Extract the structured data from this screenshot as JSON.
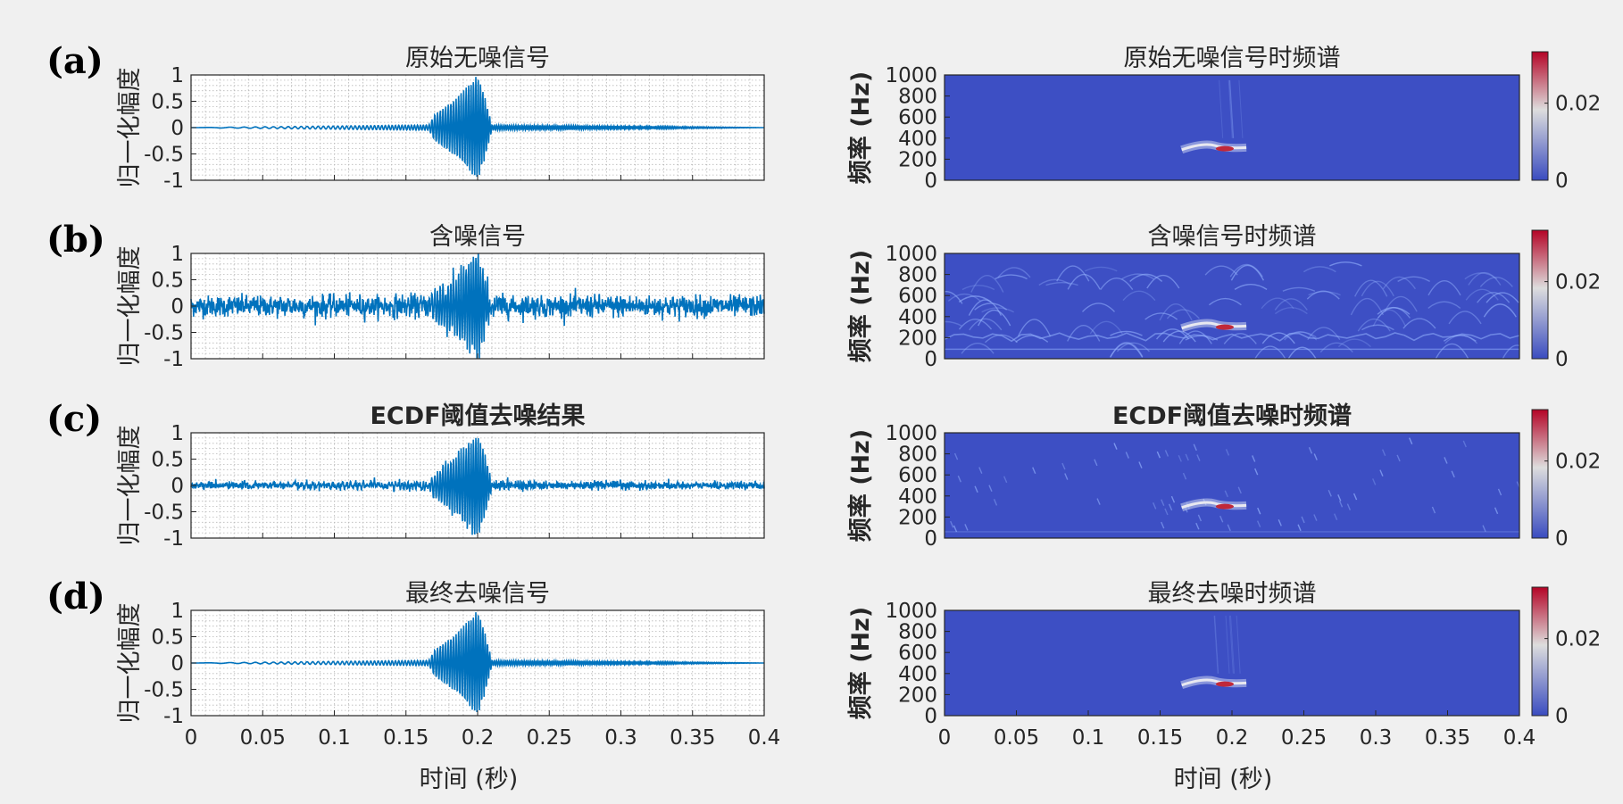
{
  "chart_data": [
    {
      "type": "line",
      "panel_label": "(a)",
      "title": "原始无噪信号",
      "ylabel": "归一化幅度",
      "xlabel": "",
      "xlim": [
        0,
        0.4
      ],
      "ylim": [
        -1,
        1
      ],
      "yticks": [
        "1",
        "0.5",
        "0",
        "-0.5",
        "-1"
      ],
      "xticks": [],
      "grid": "minor",
      "series": [
        {
          "color": "#0072bd",
          "x": [
            0,
            0.166,
            0.17,
            0.175,
            0.18,
            0.185,
            0.19,
            0.195,
            0.2,
            0.205,
            0.21,
            0.4
          ],
          "envelope": [
            0,
            0.05,
            0.25,
            0.35,
            0.45,
            0.55,
            0.7,
            0.85,
            1.0,
            0.6,
            0.05,
            0
          ],
          "noise": 0
        }
      ]
    },
    {
      "type": "heatmap",
      "title": "原始无噪信号时频谱",
      "ylabel": "频率 (Hz)",
      "xlabel": "",
      "xlim": [
        0,
        0.4
      ],
      "ylim": [
        0,
        1000
      ],
      "yticks": [
        "1000",
        "800",
        "600",
        "400",
        "200",
        "0"
      ],
      "xticks": [],
      "colorbar": {
        "ticks": [
          "0.02",
          "0"
        ],
        "colormap": [
          "#3a4cc0",
          "#dddddd",
          "#b40426"
        ]
      },
      "energy": "low",
      "hotspot": {
        "t": 0.195,
        "f": 300
      }
    },
    {
      "type": "line",
      "panel_label": "(b)",
      "title": "含噪信号",
      "ylabel": "归一化幅度",
      "xlabel": "",
      "xlim": [
        0,
        0.4
      ],
      "ylim": [
        -1,
        1
      ],
      "yticks": [
        "1",
        "0.5",
        "0",
        "-0.5",
        "-1"
      ],
      "xticks": [],
      "grid": "minor",
      "series": [
        {
          "color": "#0072bd",
          "x": [
            0,
            0.166,
            0.17,
            0.175,
            0.18,
            0.185,
            0.19,
            0.195,
            0.2,
            0.205,
            0.21,
            0.4
          ],
          "envelope": [
            0,
            0.05,
            0.25,
            0.35,
            0.45,
            0.55,
            0.7,
            0.85,
            1.0,
            0.6,
            0.05,
            0
          ],
          "noise": 0.14
        }
      ]
    },
    {
      "type": "heatmap",
      "title": "含噪信号时频谱",
      "ylabel": "频率 (Hz)",
      "xlabel": "",
      "xlim": [
        0,
        0.4
      ],
      "ylim": [
        0,
        1000
      ],
      "yticks": [
        "1000",
        "800",
        "600",
        "400",
        "200",
        "0"
      ],
      "xticks": [],
      "colorbar": {
        "ticks": [
          "0.02",
          "0"
        ],
        "colormap": [
          "#3a4cc0",
          "#dddddd",
          "#b40426"
        ]
      },
      "energy": "high",
      "hotspot": {
        "t": 0.195,
        "f": 300
      }
    },
    {
      "type": "line",
      "panel_label": "(c)",
      "title": "ECDF阈值去噪结果",
      "ylabel": "归一化幅度",
      "xlabel": "",
      "xlim": [
        0,
        0.4
      ],
      "ylim": [
        -1,
        1
      ],
      "yticks": [
        "1",
        "0.5",
        "0",
        "-0.5",
        "-1"
      ],
      "xticks": [],
      "grid": "minor",
      "series": [
        {
          "color": "#0072bd",
          "x": [
            0,
            0.166,
            0.17,
            0.175,
            0.18,
            0.185,
            0.19,
            0.195,
            0.2,
            0.205,
            0.21,
            0.4
          ],
          "envelope": [
            0,
            0.05,
            0.25,
            0.35,
            0.45,
            0.55,
            0.7,
            0.85,
            1.0,
            0.6,
            0.05,
            0
          ],
          "noise": 0.05
        }
      ]
    },
    {
      "type": "heatmap",
      "title": "ECDF阈值去噪时频谱",
      "ylabel": "频率 (Hz)",
      "xlabel": "",
      "xlim": [
        0,
        0.4
      ],
      "ylim": [
        0,
        1000
      ],
      "yticks": [
        "1000",
        "800",
        "600",
        "400",
        "200",
        "0"
      ],
      "xticks": [],
      "colorbar": {
        "ticks": [
          "0.02",
          "0"
        ],
        "colormap": [
          "#3a4cc0",
          "#dddddd",
          "#b40426"
        ]
      },
      "energy": "medium",
      "hotspot": {
        "t": 0.195,
        "f": 300
      }
    },
    {
      "type": "line",
      "panel_label": "(d)",
      "title": "最终去噪信号",
      "ylabel": "归一化幅度",
      "xlabel": "时间 (秒)",
      "xlim": [
        0,
        0.4
      ],
      "ylim": [
        -1,
        1
      ],
      "yticks": [
        "1",
        "0.5",
        "0",
        "-0.5",
        "-1"
      ],
      "xticks": [
        "0",
        "0.05",
        "0.1",
        "0.15",
        "0.2",
        "0.25",
        "0.3",
        "0.35",
        "0.4"
      ],
      "grid": "minor",
      "series": [
        {
          "color": "#0072bd",
          "x": [
            0,
            0.166,
            0.17,
            0.175,
            0.18,
            0.185,
            0.19,
            0.195,
            0.2,
            0.205,
            0.21,
            0.4
          ],
          "envelope": [
            0,
            0.05,
            0.25,
            0.35,
            0.45,
            0.55,
            0.7,
            0.85,
            1.0,
            0.6,
            0.05,
            0
          ],
          "noise": 0
        }
      ]
    },
    {
      "type": "heatmap",
      "title": "最终去噪时频谱",
      "ylabel": "频率 (Hz)",
      "xlabel": "时间 (秒)",
      "xlim": [
        0,
        0.4
      ],
      "ylim": [
        0,
        1000
      ],
      "yticks": [
        "1000",
        "800",
        "600",
        "400",
        "200",
        "0"
      ],
      "xticks": [
        "0",
        "0.05",
        "0.1",
        "0.15",
        "0.2",
        "0.25",
        "0.3",
        "0.35",
        "0.4"
      ],
      "colorbar": {
        "ticks": [
          "0.02",
          "0"
        ],
        "colormap": [
          "#3a4cc0",
          "#dddddd",
          "#b40426"
        ]
      },
      "energy": "low",
      "hotspot": {
        "t": 0.195,
        "f": 300
      }
    }
  ]
}
